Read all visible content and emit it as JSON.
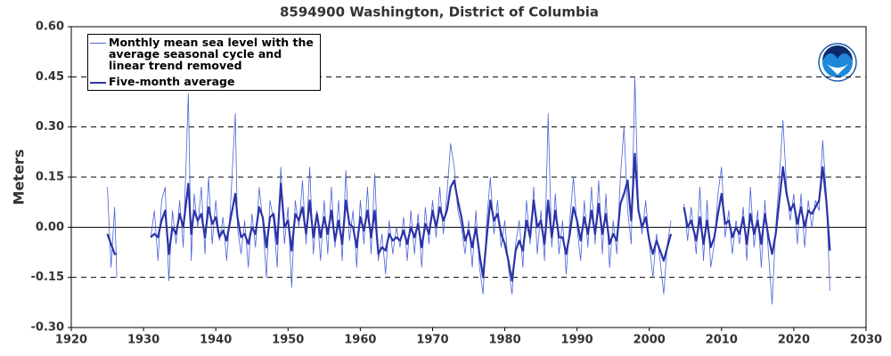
{
  "chart_data": {
    "type": "line",
    "title": "8594900 Washington, District of Columbia",
    "ylabel": "Meters",
    "xlim": [
      1920,
      2030
    ],
    "xticks": [
      1920,
      1930,
      1940,
      1950,
      1960,
      1970,
      1980,
      1990,
      2000,
      2010,
      2020,
      2030
    ],
    "ylim": [
      -0.3,
      0.6
    ],
    "yticks": [
      {
        "value": -0.3,
        "label": "-0.30"
      },
      {
        "value": -0.15,
        "label": "-0.15"
      },
      {
        "value": 0,
        "label": "0.00"
      },
      {
        "value": 0.15,
        "label": "0.15"
      },
      {
        "value": 0.3,
        "label": "0.30"
      },
      {
        "value": 0.45,
        "label": "0.45"
      },
      {
        "value": 0.6,
        "label": "0.60"
      }
    ],
    "grid": true,
    "legend": "upper left",
    "x": [
      1925.0,
      1925.5,
      1926.0,
      1926.3,
      1926.5,
      1931.0,
      1931.5,
      1932.0,
      1932.5,
      1933.0,
      1933.5,
      1934.0,
      1934.5,
      1935.0,
      1935.5,
      1936.2,
      1936.6,
      1937.0,
      1937.5,
      1938.0,
      1938.5,
      1939.0,
      1939.5,
      1940.0,
      1940.5,
      1941.0,
      1941.5,
      1942.0,
      1942.7,
      1943.0,
      1943.5,
      1944.0,
      1944.5,
      1945.0,
      1945.5,
      1946.0,
      1946.5,
      1947.0,
      1947.5,
      1948.0,
      1948.5,
      1949.0,
      1949.5,
      1950.0,
      1950.5,
      1951.0,
      1951.5,
      1952.0,
      1952.5,
      1953.0,
      1953.5,
      1954.0,
      1954.5,
      1955.0,
      1955.5,
      1956.0,
      1956.5,
      1957.0,
      1957.5,
      1958.0,
      1958.5,
      1959.0,
      1959.5,
      1960.0,
      1960.5,
      1961.0,
      1961.5,
      1962.0,
      1962.5,
      1963.0,
      1963.5,
      1964.0,
      1964.5,
      1965.0,
      1965.5,
      1966.0,
      1966.5,
      1967.0,
      1967.5,
      1968.0,
      1968.5,
      1969.0,
      1969.5,
      1970.0,
      1970.5,
      1971.0,
      1971.5,
      1972.0,
      1972.5,
      1973.0,
      1973.5,
      1974.0,
      1974.5,
      1975.0,
      1975.5,
      1976.0,
      1976.5,
      1977.0,
      1977.5,
      1978.0,
      1978.5,
      1979.0,
      1979.5,
      1980.0,
      1980.5,
      1981.0,
      1981.5,
      1982.0,
      1982.5,
      1983.0,
      1983.5,
      1984.0,
      1984.5,
      1985.0,
      1985.5,
      1986.0,
      1986.5,
      1987.0,
      1987.5,
      1988.0,
      1988.5,
      1989.0,
      1989.5,
      1990.0,
      1990.5,
      1991.0,
      1991.5,
      1992.0,
      1992.5,
      1993.0,
      1993.5,
      1994.0,
      1994.5,
      1995.0,
      1995.5,
      1996.0,
      1996.5,
      1997.0,
      1997.5,
      1998.0,
      1998.5,
      1999.0,
      1999.5,
      2000.0,
      2000.5,
      2001.0,
      2001.5,
      2002.0,
      2002.5,
      2003.0,
      2003.5,
      2004.8,
      2005.3,
      2005.8,
      2006.5,
      2007.0,
      2007.5,
      2008.0,
      2008.5,
      2009.0,
      2009.5,
      2010.0,
      2010.5,
      2011.0,
      2011.5,
      2012.0,
      2012.5,
      2013.0,
      2013.5,
      2014.0,
      2014.5,
      2015.0,
      2015.5,
      2016.0,
      2016.5,
      2017.0,
      2017.5,
      2018.0,
      2018.5,
      2019.0,
      2019.5,
      2020.0,
      2020.5,
      2021.0,
      2021.5,
      2022.0,
      2022.5,
      2023.0,
      2023.5,
      2024.0,
      2024.5,
      2025.0
    ],
    "series": [
      {
        "name": "Monthly mean sea level with the average seasonal cycle and linear trend removed",
        "color": "#4a62d8",
        "width": 0.8,
        "values": [
          0.12,
          -0.12,
          0.06,
          -0.15,
          null,
          -0.03,
          0.05,
          -0.1,
          0.08,
          0.12,
          -0.16,
          0.05,
          -0.05,
          0.08,
          -0.06,
          0.4,
          -0.1,
          0.1,
          0.0,
          0.12,
          -0.08,
          0.15,
          -0.05,
          0.08,
          -0.04,
          0.03,
          -0.1,
          0.05,
          0.34,
          0.0,
          -0.08,
          0.02,
          -0.12,
          0.04,
          -0.06,
          0.12,
          0.02,
          -0.15,
          0.08,
          0.02,
          -0.12,
          0.18,
          -0.05,
          0.06,
          -0.18,
          0.08,
          0.0,
          0.14,
          -0.05,
          0.18,
          -0.08,
          0.05,
          -0.1,
          0.08,
          -0.08,
          0.12,
          -0.06,
          0.08,
          -0.1,
          0.17,
          -0.04,
          0.05,
          -0.12,
          0.08,
          -0.05,
          0.12,
          -0.08,
          0.16,
          -0.1,
          -0.02,
          -0.14,
          0.02,
          -0.08,
          0.0,
          -0.06,
          0.03,
          -0.1,
          0.05,
          -0.08,
          0.04,
          -0.12,
          0.06,
          -0.05,
          0.08,
          -0.03,
          0.12,
          -0.02,
          0.1,
          0.25,
          0.18,
          0.05,
          0.0,
          -0.08,
          0.02,
          -0.12,
          0.05,
          -0.12,
          -0.2,
          0.02,
          0.15,
          -0.02,
          0.08,
          -0.06,
          0.02,
          -0.12,
          -0.2,
          -0.05,
          0.02,
          -0.12,
          0.08,
          -0.05,
          0.12,
          -0.08,
          0.05,
          -0.1,
          0.34,
          -0.06,
          0.1,
          -0.08,
          0.02,
          -0.14,
          0.02,
          0.15,
          0.0,
          -0.1,
          0.08,
          -0.06,
          0.12,
          -0.05,
          0.14,
          -0.08,
          0.1,
          -0.12,
          0.02,
          -0.08,
          0.15,
          0.3,
          0.05,
          -0.05,
          0.45,
          0.05,
          -0.02,
          0.08,
          -0.05,
          -0.15,
          -0.02,
          -0.1,
          -0.2,
          -0.05,
          0.02,
          null,
          0.07,
          -0.04,
          0.06,
          -0.08,
          0.12,
          -0.1,
          0.08,
          -0.12,
          -0.05,
          0.1,
          0.18,
          -0.03,
          0.05,
          -0.08,
          0.02,
          -0.05,
          0.06,
          -0.1,
          0.12,
          -0.06,
          0.05,
          -0.12,
          0.08,
          -0.08,
          -0.23,
          0.0,
          0.15,
          0.32,
          0.12,
          0.02,
          0.1,
          -0.05,
          0.1,
          -0.06,
          0.08,
          0.0,
          0.08,
          0.05,
          0.26,
          0.1,
          -0.19
        ]
      },
      {
        "name": "Five-month average",
        "color": "#2a34a6",
        "width": 2.2,
        "values": [
          -0.02,
          -0.05,
          -0.08,
          -0.08,
          null,
          -0.03,
          -0.02,
          -0.03,
          0.02,
          0.05,
          -0.08,
          0.0,
          -0.02,
          0.04,
          0.0,
          0.13,
          -0.02,
          0.05,
          0.02,
          0.04,
          -0.03,
          0.06,
          0.01,
          0.03,
          -0.03,
          -0.01,
          -0.04,
          0.02,
          0.1,
          0.03,
          -0.03,
          -0.02,
          -0.05,
          0.0,
          -0.02,
          0.06,
          0.03,
          -0.06,
          0.03,
          0.04,
          -0.05,
          0.13,
          0.0,
          0.02,
          -0.07,
          0.04,
          0.02,
          0.06,
          -0.02,
          0.08,
          -0.03,
          0.04,
          -0.03,
          0.03,
          -0.02,
          0.05,
          -0.04,
          0.02,
          -0.05,
          0.08,
          0.01,
          0.0,
          -0.06,
          0.03,
          -0.01,
          0.05,
          -0.03,
          0.05,
          -0.08,
          -0.06,
          -0.07,
          -0.02,
          -0.04,
          -0.03,
          -0.04,
          -0.01,
          -0.05,
          0.0,
          -0.03,
          0.01,
          -0.06,
          0.01,
          -0.02,
          0.05,
          0.0,
          0.06,
          0.02,
          0.05,
          0.12,
          0.14,
          0.08,
          0.03,
          -0.04,
          -0.01,
          -0.06,
          0.0,
          -0.08,
          -0.15,
          -0.03,
          0.08,
          0.02,
          0.04,
          -0.02,
          -0.05,
          -0.1,
          -0.16,
          -0.07,
          -0.04,
          -0.07,
          0.02,
          -0.03,
          0.08,
          0.0,
          0.02,
          -0.05,
          0.08,
          -0.03,
          0.05,
          -0.03,
          -0.03,
          -0.08,
          -0.02,
          0.06,
          0.02,
          -0.04,
          0.03,
          -0.02,
          0.05,
          -0.02,
          0.07,
          -0.02,
          0.04,
          -0.05,
          -0.02,
          -0.04,
          0.07,
          0.1,
          0.14,
          0.02,
          0.22,
          0.05,
          0.0,
          0.03,
          -0.04,
          -0.08,
          -0.04,
          -0.07,
          -0.1,
          -0.06,
          -0.02,
          null,
          0.06,
          0.0,
          0.02,
          -0.04,
          0.03,
          -0.05,
          0.02,
          -0.06,
          -0.03,
          0.04,
          0.1,
          0.01,
          0.02,
          -0.03,
          0.0,
          -0.02,
          0.03,
          -0.05,
          0.04,
          -0.02,
          0.02,
          -0.05,
          0.04,
          -0.03,
          -0.08,
          -0.02,
          0.08,
          0.18,
          0.1,
          0.05,
          0.07,
          0.01,
          0.06,
          0.0,
          0.05,
          0.04,
          0.06,
          0.08,
          0.18,
          0.08,
          -0.07
        ]
      }
    ]
  }
}
